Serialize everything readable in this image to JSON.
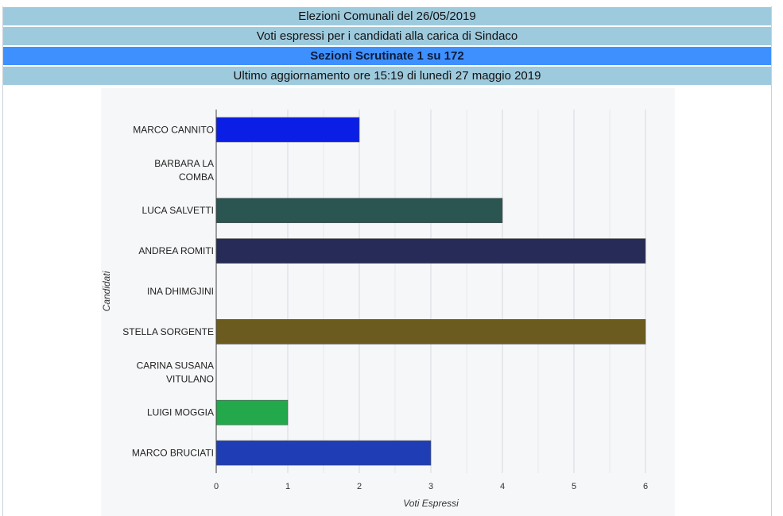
{
  "header": {
    "line1": "Elezioni Comunali del 26/05/2019",
    "line2": "Voti espressi per i candidati alla carica di Sindaco",
    "line3": "Sezioni Scrutinate 1 su 172",
    "line4": "Ultimo aggiornamento ore 15:19 di lunedì 27 maggio 2019"
  },
  "colors": {
    "header_bg": "#9ecadd",
    "header_accent_bg": "#3f90ff",
    "chart_bg": "#f6f7f9"
  },
  "chart_data": {
    "type": "bar",
    "orientation": "horizontal",
    "title": "",
    "xlabel": "Voti Espressi",
    "ylabel": "Candidati",
    "xlim": [
      0,
      6
    ],
    "xticks": [
      0,
      1,
      2,
      3,
      4,
      5,
      6
    ],
    "grid": true,
    "categories": [
      "MARCO CANNITO",
      "BARBARA LA COMBA",
      "LUCA SALVETTI",
      "ANDREA ROMITI",
      "INA DHIMGJINI",
      "STELLA SORGENTE",
      "CARINA SUSANA VITULANO",
      "LUIGI MOGGIA",
      "MARCO BRUCIATI"
    ],
    "category_lines": [
      [
        "MARCO CANNITO"
      ],
      [
        "BARBARA LA",
        "COMBA"
      ],
      [
        "LUCA SALVETTI"
      ],
      [
        "ANDREA ROMITI"
      ],
      [
        "INA DHIMGJINI"
      ],
      [
        "STELLA SORGENTE"
      ],
      [
        "CARINA SUSANA",
        "VITULANO"
      ],
      [
        "LUIGI MOGGIA"
      ],
      [
        "MARCO BRUCIATI"
      ]
    ],
    "values": [
      2,
      0,
      4,
      6,
      0,
      6,
      0,
      1,
      3
    ],
    "bar_colors": [
      "#0a1ee6",
      "#888888",
      "#2a5550",
      "#262b57",
      "#888888",
      "#6b5b1e",
      "#888888",
      "#23a84b",
      "#1f3db5"
    ]
  }
}
